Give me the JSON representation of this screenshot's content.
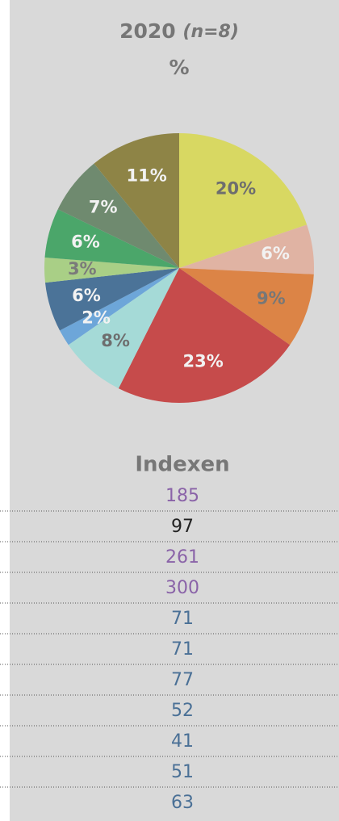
{
  "chart_data": {
    "type": "pie",
    "title": "2020",
    "title_note": "(n=8)",
    "subtitle": "%",
    "values": [
      20,
      6,
      9,
      23,
      8,
      2,
      6,
      3,
      6,
      7,
      11
    ],
    "value_labels": [
      "20%",
      "6%",
      "9%",
      "23%",
      "8%",
      "2%",
      "6%",
      "3%",
      "6%",
      "7%",
      "11%"
    ],
    "colors": [
      "#d8d862",
      "#e0b3a3",
      "#dc8446",
      "#c64b4b",
      "#a5dad7",
      "#6da6d9",
      "#4b7398",
      "#a9cf86",
      "#4ba66a",
      "#6f8a6f",
      "#8e8446"
    ],
    "label_colors": [
      "#6e6e6e",
      "#f2f2f2",
      "#777777",
      "#f2f2f2",
      "#6e6e6e",
      "#f2f2f2",
      "#f2f2f2",
      "#7a7a7a",
      "#f2f2f2",
      "#f2f2f2",
      "#f2f2f2"
    ]
  },
  "index": {
    "header": "Indexen",
    "values": [
      "185",
      "97",
      "261",
      "300",
      "71",
      "71",
      "77",
      "52",
      "41",
      "51",
      "63"
    ],
    "colors": [
      "#8a63a8",
      "#222222",
      "#8a63a8",
      "#8a63a8",
      "#4a7096",
      "#4a7096",
      "#4a7096",
      "#4a7096",
      "#4a7096",
      "#4a7096",
      "#4a7096"
    ]
  }
}
